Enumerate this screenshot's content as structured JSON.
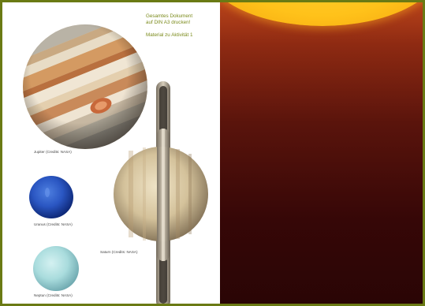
{
  "note": {
    "line1": "Gesamtes Dokument",
    "line2": "auf DIN A3 drucken!",
    "line3": "Material zu Aktivität 1"
  },
  "captions": {
    "jupiter": "Jupiter (Credits: NASA)",
    "uranus": "Uranus (Credits: NASA)",
    "neptune": "Neptun (Credits: NASA)",
    "saturn": "Saturn (Credits: NASA)"
  },
  "colors": {
    "border": "#6a7a14",
    "note_text": "#7a8a1a",
    "sun": "#ffc21a",
    "background_dark": "#2a0505"
  }
}
